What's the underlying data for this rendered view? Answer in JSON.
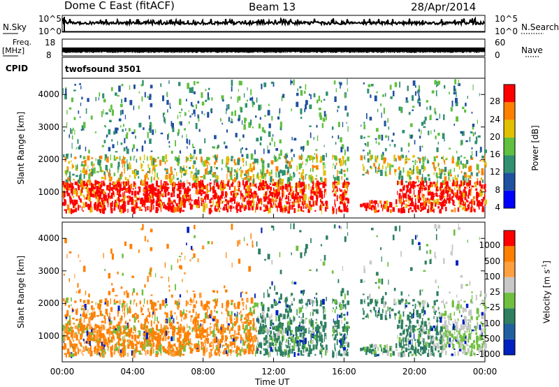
{
  "header": {
    "title": "Dome C East (fitACF)",
    "beam": "Beam 13",
    "date": "28/Apr/2014"
  },
  "params": {
    "nsky_label": "N.Sky",
    "nsky_ticks": [
      "10^5",
      "10^0"
    ],
    "nsearch_label": "N.Search",
    "nsearch_ticks": [
      "10^5",
      "10^0"
    ],
    "freq_label": "Freq.",
    "freq_unit": "[MHz]",
    "freq_ticks": [
      "18",
      "8"
    ],
    "nave_label": "Nave",
    "nave_ticks": [
      "60",
      "0"
    ],
    "cpid_label": "CPID",
    "cpid_value": "twofsound 3501"
  },
  "chart_data": [
    {
      "type": "heatmap",
      "name": "power",
      "ylabel": "Slant Range [km]",
      "yticks": [
        "4000",
        "3000",
        "2000",
        "1000"
      ],
      "ylim": [
        200,
        4500
      ],
      "xlim": [
        0,
        24
      ],
      "colorbar_label": "Power [dB]",
      "colorbar_ticks": [
        "28",
        "24",
        "20",
        "16",
        "12",
        "8",
        "4"
      ],
      "colors": [
        "#0000ff",
        "#2050a0",
        "#309070",
        "#60c040",
        "#e0c000",
        "#ff8000",
        "#ff0000"
      ]
    },
    {
      "type": "heatmap",
      "name": "velocity",
      "ylabel": "Slant Range [km]",
      "yticks": [
        "4000",
        "3000",
        "2000",
        "1000"
      ],
      "ylim": [
        200,
        4500
      ],
      "xlim": [
        0,
        24
      ],
      "xlabel": "Time UT",
      "xticks": [
        "00:00",
        "04:00",
        "08:00",
        "12:00",
        "16:00",
        "20:00",
        "00:00"
      ],
      "colorbar_label": "Velocity [m s",
      "colorbar_label_sup": "-1",
      "colorbar_label_end": "]",
      "colorbar_ticks": [
        "1000",
        "500",
        "100",
        "25",
        "-25",
        "-100",
        "-500",
        "-1000"
      ],
      "colors": [
        "#0020c0",
        "#2060a0",
        "#2e8060",
        "#70c040",
        "#c8c8c8",
        "#ffa040",
        "#ff8000",
        "#ff0000"
      ]
    }
  ]
}
